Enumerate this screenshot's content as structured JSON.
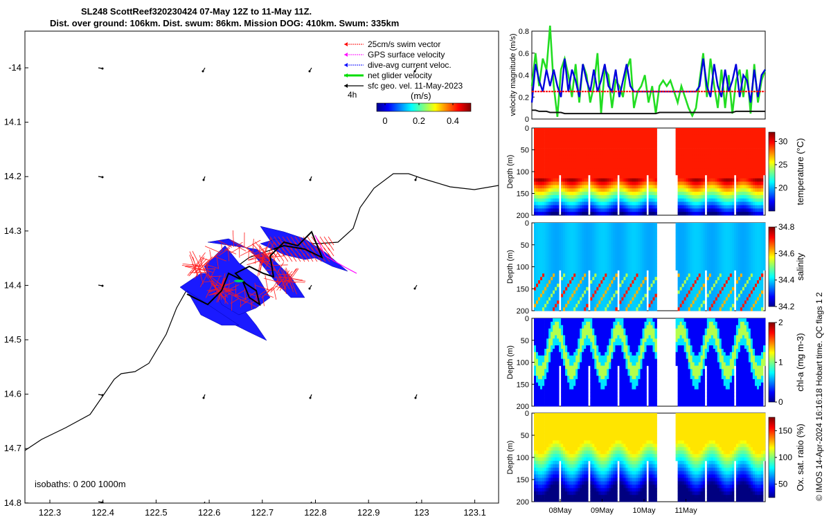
{
  "title_line1": "SL248 ScottReef320230424 07-May 12Z to 11-May 11Z.",
  "title_line2": "Dist. over ground: 106km. Dist. swum: 86km. Mission DOG: 410km. Swum: 335km",
  "credit": "© IMOS 14-Apr-2024 16:16:18 Hobart time. QC flags 1  2",
  "colors": {
    "swim": "#ff0000",
    "gps": "#ff00ff",
    "current": "#0000ff",
    "net": "#00dd00",
    "sfc": "#000000"
  },
  "map": {
    "legend": [
      "25cm/s swim vector",
      "GPS surface velocity",
      "dive-avg current veloc.",
      "net glider velocity",
      "sfc geo. vel. 11-May-2023"
    ],
    "legend_time": "4h",
    "colorbar_label": "(m/s)",
    "colorbar_ticks": [
      "0",
      "0.2",
      "0.4"
    ],
    "isobath_label": "isobaths: 0   200  1000m",
    "y_ticks": [
      "-14",
      "14.1",
      "14.2",
      "14.3",
      "14.4",
      "14.5",
      "14.6",
      "14.7",
      "14.8"
    ],
    "x_ticks": [
      "122.3",
      "122.4",
      "122.5",
      "122.6",
      "122.7",
      "122.8",
      "122.9",
      "123",
      "123.1"
    ]
  },
  "chart_data": [
    {
      "type": "line",
      "title": "velocity magnitude",
      "ylabel": "velocity magnitude (m/s)",
      "ylim": [
        0,
        0.8
      ],
      "yticks": [
        "0",
        "0.2",
        "0.4",
        "0.6",
        "0.8"
      ],
      "series": [
        {
          "name": "net glider velocity",
          "color": "#22dd22",
          "values": [
            0.3,
            0.6,
            0.3,
            0.55,
            0.45,
            0.85,
            0.3,
            0.02,
            0.45,
            0.55,
            0.4,
            0.2,
            0.5,
            0.15,
            0.5,
            0.4,
            0.15,
            0.3,
            0.6,
            0.05,
            0.45,
            0.4,
            0.1,
            0.35,
            0.3,
            0.2,
            0.45,
            0.55,
            0.1,
            0.25,
            0.3,
            0.4,
            0.15,
            0.3,
            0.05,
            0.3,
            0.35,
            0.3,
            0.35,
            0.25,
            0.15,
            0.3,
            0.2,
            0.1,
            0.03,
            0.1,
            0.35,
            0.6,
            0.2,
            0.55,
            0.3,
            0.1,
            0.45,
            0.1,
            0.4,
            0.05,
            0.35,
            0.45,
            0.2,
            0.45,
            0.05,
            0.5,
            0.15,
            0.35,
            0.45
          ]
        },
        {
          "name": "dive-avg current",
          "color": "#0000dd",
          "values": [
            0.15,
            0.5,
            0.35,
            0.25,
            0.45,
            0.3,
            0.45,
            0.3,
            0.2,
            0.55,
            0.25,
            0.45,
            0.35,
            0.2,
            0.5,
            0.35,
            0.25,
            0.45,
            0.25,
            0.35,
            0.5,
            0.3,
            0.25,
            0.45,
            0.2,
            0.35,
            0.5,
            0.3,
            0.25,
            0.25,
            0.25,
            0.25,
            0.25,
            0.25,
            0.25,
            0.25,
            0.25,
            0.25,
            0.25,
            0.25,
            0.25,
            0.25,
            0.25,
            0.25,
            0.25,
            0.25,
            0.3,
            0.55,
            0.3,
            0.2,
            0.5,
            0.3,
            0.2,
            0.45,
            0.25,
            0.35,
            0.5,
            0.2,
            0.4,
            0.35,
            0.15,
            0.45,
            0.2,
            0.4,
            0.45
          ]
        },
        {
          "name": "25cm/s swim",
          "color": "#ff0000",
          "values": [
            0.25,
            0.25
          ]
        },
        {
          "name": "sfc geo vel",
          "color": "#111111",
          "values": [
            0.08,
            0.08,
            0.07,
            0.07,
            0.07,
            0.06,
            0.06,
            0.06,
            0.06,
            0.05,
            0.05,
            0.05,
            0.05,
            0.05,
            0.05,
            0.05,
            0.05,
            0.05,
            0.05,
            0.05,
            0.05,
            0.05,
            0.05,
            0.05,
            0.05,
            0.05,
            0.05,
            0.05,
            0.05,
            0.05,
            0.05,
            0.05,
            0.05,
            0.05,
            0.05,
            0.06,
            0.06,
            0.06,
            0.06,
            0.06,
            0.06,
            0.06,
            0.06,
            0.06,
            0.06,
            0.06,
            0.06,
            0.06,
            0.06,
            0.06,
            0.06,
            0.06,
            0.06,
            0.06,
            0.06,
            0.06,
            0.07,
            0.07,
            0.07,
            0.07,
            0.07,
            0.07,
            0.07,
            0.07,
            0.07
          ]
        }
      ]
    },
    {
      "type": "heatmap",
      "variable": "temperature",
      "ylabel": "Depth (m)",
      "ylim": [
        0,
        200
      ],
      "yticks": [
        "0",
        "50",
        "100",
        "150",
        "200"
      ],
      "clabel": "temperature (°C)",
      "cticks": [
        "20",
        "25",
        "30"
      ],
      "crange": [
        15,
        32
      ],
      "cycles": 7.5
    },
    {
      "type": "heatmap",
      "variable": "salinity",
      "ylabel": "Depth (m)",
      "ylim": [
        0,
        200
      ],
      "yticks": [
        "0",
        "50",
        "100",
        "150",
        "200"
      ],
      "clabel": "salinity",
      "cticks": [
        "34.2",
        "34.4",
        "34.6",
        "34.8"
      ],
      "crange": [
        34.2,
        34.8
      ],
      "cycles": 7.5
    },
    {
      "type": "heatmap",
      "variable": "chl-a",
      "ylabel": "Depth (m)",
      "ylim": [
        0,
        200
      ],
      "yticks": [
        "0",
        "50",
        "100",
        "150",
        "200"
      ],
      "clabel": "chl-a (mg m-3)",
      "cticks": [
        "0",
        "1",
        "2"
      ],
      "crange": [
        0,
        2
      ],
      "cycles": 7.5
    },
    {
      "type": "heatmap",
      "variable": "oxygen",
      "ylabel": "Depth (m)",
      "ylim": [
        0,
        200
      ],
      "yticks": [
        "0",
        "50",
        "100",
        "150",
        "200"
      ],
      "clabel": "Ox. sat. ratio (%)",
      "cticks": [
        "50",
        "100",
        "150"
      ],
      "crange": [
        25,
        175
      ],
      "cycles": 7.5
    }
  ],
  "time_ticks": [
    "08May",
    "09May",
    "10May",
    "11May"
  ]
}
